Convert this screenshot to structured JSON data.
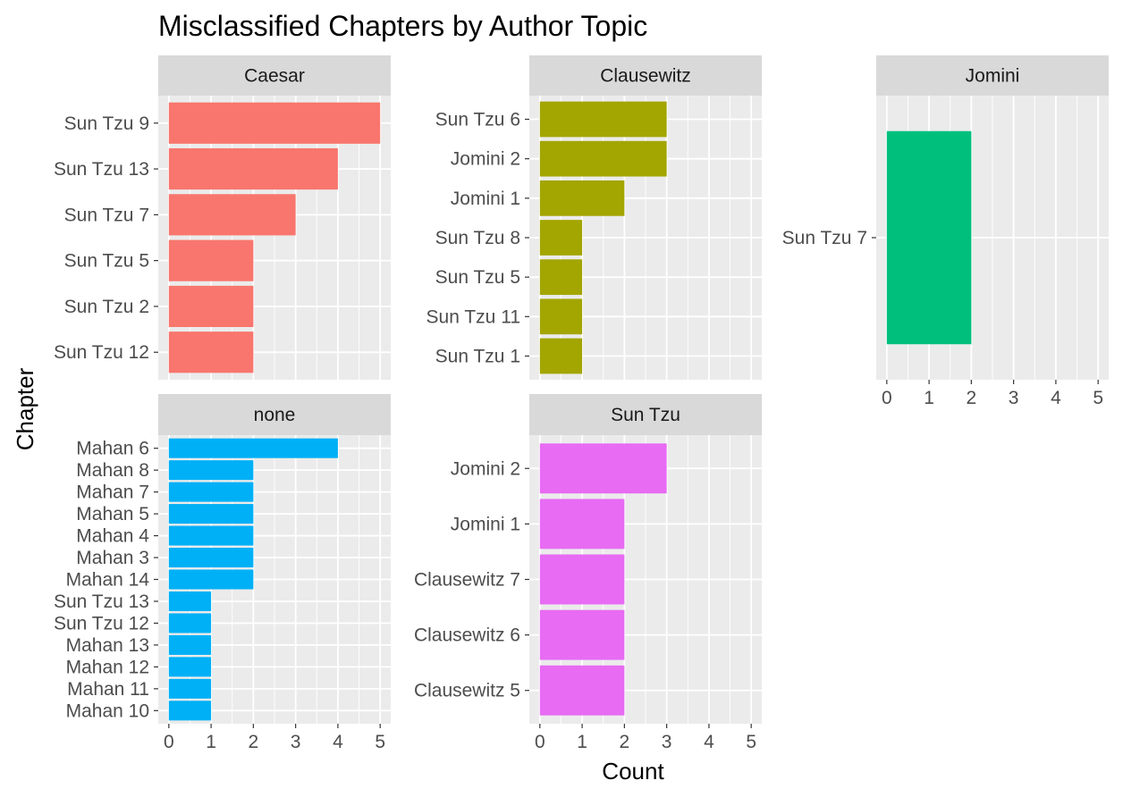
{
  "chart_data": {
    "type": "bar",
    "orientation": "horizontal",
    "title": "Misclassified Chapters by Author Topic",
    "xlabel": "Count",
    "ylabel": "Chapter",
    "xlim": [
      0,
      5.2
    ],
    "xticks": [
      0,
      1,
      2,
      3,
      4,
      5
    ],
    "grid": true,
    "legend": "none",
    "facets": [
      {
        "name": "Caesar",
        "color": "#F8766D",
        "categories": [
          "Sun Tzu 9",
          "Sun Tzu 13",
          "Sun Tzu 7",
          "Sun Tzu 5",
          "Sun Tzu 2",
          "Sun Tzu 12"
        ],
        "values": [
          5,
          4,
          3,
          2,
          2,
          2
        ]
      },
      {
        "name": "Clausewitz",
        "color": "#A3A500",
        "categories": [
          "Sun Tzu 6",
          "Jomini 2",
          "Jomini 1",
          "Sun Tzu 8",
          "Sun Tzu 5",
          "Sun Tzu 11",
          "Sun Tzu 1"
        ],
        "values": [
          3,
          3,
          2,
          1,
          1,
          1,
          1
        ]
      },
      {
        "name": "Jomini",
        "color": "#00BF7D",
        "categories": [
          "Sun Tzu 7"
        ],
        "values": [
          2
        ]
      },
      {
        "name": "none",
        "color": "#00B0F6",
        "categories": [
          "Mahan 6",
          "Mahan 8",
          "Mahan 7",
          "Mahan 5",
          "Mahan 4",
          "Mahan 3",
          "Mahan 14",
          "Sun Tzu 13",
          "Sun Tzu 12",
          "Mahan 13",
          "Mahan 12",
          "Mahan 11",
          "Mahan 10"
        ],
        "values": [
          4,
          2,
          2,
          2,
          2,
          2,
          2,
          1,
          1,
          1,
          1,
          1,
          1
        ]
      },
      {
        "name": "Sun Tzu",
        "color": "#E76BF3",
        "categories": [
          "Jomini 2",
          "Jomini 1",
          "Clausewitz 7",
          "Clausewitz 6",
          "Clausewitz 5"
        ],
        "values": [
          3,
          2,
          2,
          2,
          2
        ]
      }
    ]
  }
}
